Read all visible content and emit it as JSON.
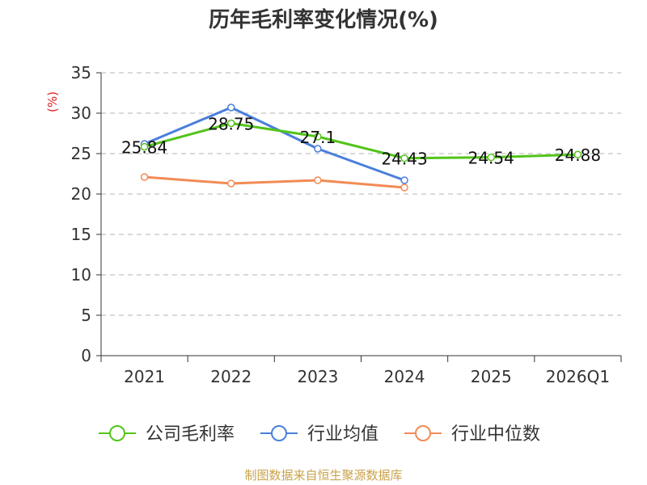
{
  "title": "历年毛利率变化情况(%)",
  "source": "制图数据来自恒生聚源数据库",
  "chart_data": {
    "type": "line",
    "title": "历年毛利率变化情况(%)",
    "ylabel": "(%)",
    "xlabel": "",
    "ylim": [
      0,
      35
    ],
    "yticks": [
      0,
      5,
      10,
      15,
      20,
      25,
      30,
      35
    ],
    "categories": [
      "2021",
      "2022",
      "2023",
      "2024",
      "2025",
      "2026Q1"
    ],
    "grid": true,
    "legend_position": "bottom",
    "series": [
      {
        "name": "公司毛利率",
        "color": "#52c41a",
        "values": [
          25.84,
          28.75,
          27.1,
          24.43,
          24.54,
          24.88
        ],
        "labels": [
          "25.84",
          "28.75",
          "27.1",
          "24.43",
          "24.54",
          "24.88"
        ]
      },
      {
        "name": "行业均值",
        "color": "#4a7fdb",
        "values": [
          26.2,
          30.7,
          25.6,
          21.7,
          null,
          null
        ]
      },
      {
        "name": "行业中位数",
        "color": "#f28b54",
        "values": [
          22.1,
          21.3,
          21.7,
          20.8,
          null,
          null
        ]
      }
    ]
  }
}
